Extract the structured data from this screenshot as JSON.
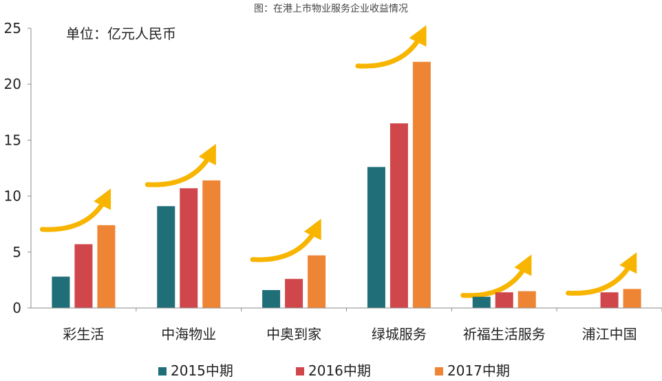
{
  "chart_data": {
    "type": "bar",
    "title": "图：在港上市物业服务企业收益情况",
    "unit_note": "单位：亿元人民币",
    "categories": [
      "彩生活",
      "中海物业",
      "中奥到家",
      "绿城服务",
      "祈福生活服务",
      "浦江中国"
    ],
    "series": [
      {
        "name": "2015中期",
        "color": "#1f6e78",
        "values": [
          2.8,
          9.1,
          1.6,
          12.6,
          1.0,
          null
        ]
      },
      {
        "name": "2016中期",
        "color": "#d0474b",
        "values": [
          5.7,
          10.7,
          2.6,
          16.5,
          1.4,
          1.4
        ]
      },
      {
        "name": "2017中期",
        "color": "#ee8535",
        "values": [
          7.4,
          11.4,
          4.7,
          22.0,
          1.5,
          1.7
        ]
      }
    ],
    "ylim": [
      0,
      25
    ],
    "yticks": [
      0,
      5,
      10,
      15,
      20,
      25
    ],
    "grid": false,
    "legend_position": "bottom",
    "arrow_color": "#f7b500"
  }
}
